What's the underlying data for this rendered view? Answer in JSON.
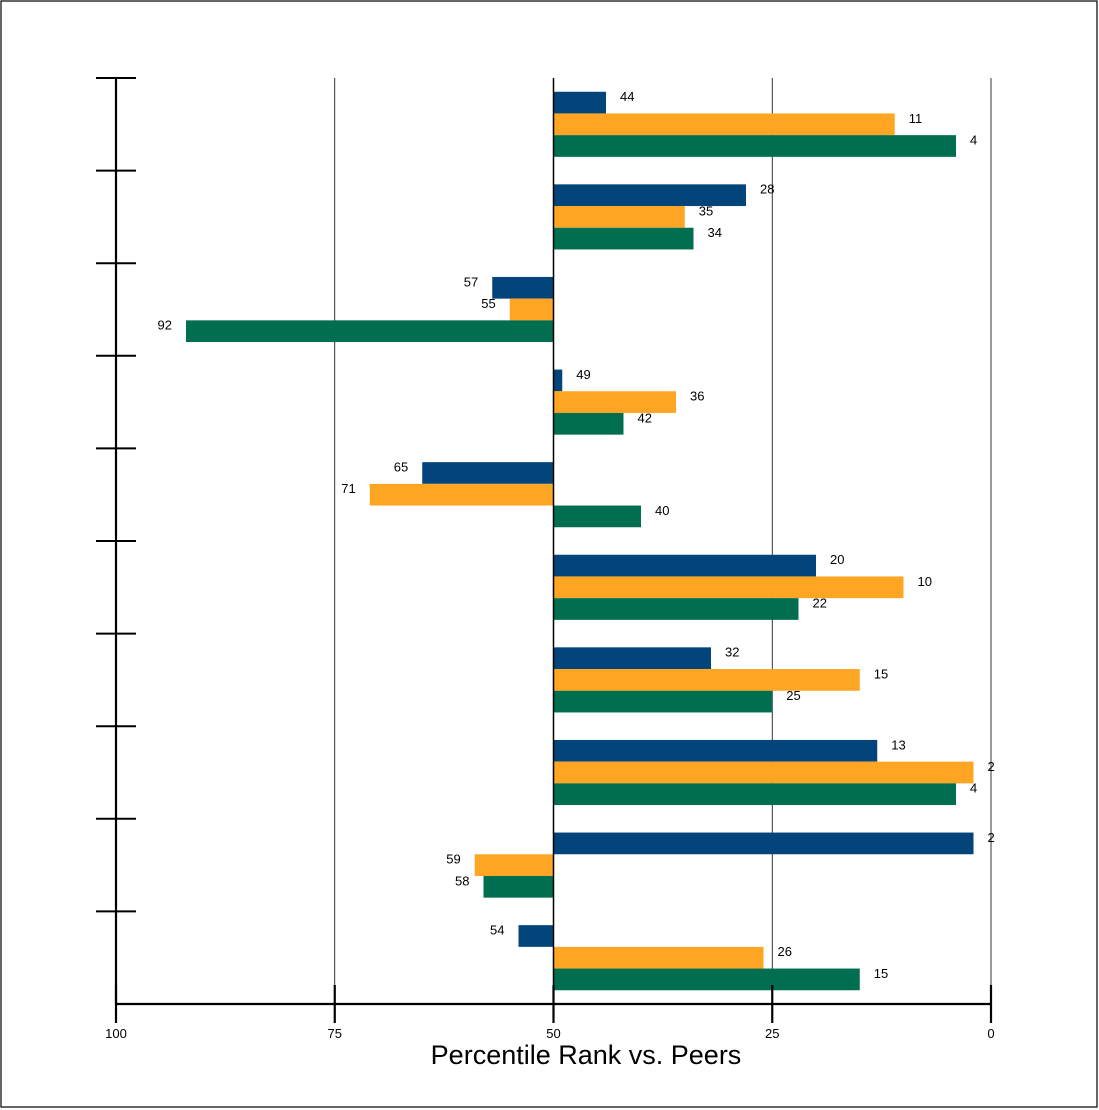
{
  "chart_data": {
    "type": "bar",
    "orientation": "horizontal",
    "xlabel": "Percentile Rank vs. Peers",
    "xlim": [
      100,
      0
    ],
    "x_reversed": true,
    "reference_value": 50,
    "x_ticks": [
      100,
      75,
      50,
      25,
      0
    ],
    "x_tick_labels": [
      "100",
      "75",
      "50",
      "25",
      "0"
    ],
    "gridlines": [
      75,
      25,
      0
    ],
    "group_count": 10,
    "legend": "none",
    "series": [
      {
        "color": "#03457b",
        "values": [
          44,
          28,
          57,
          49,
          65,
          20,
          32,
          13,
          2,
          54
        ]
      },
      {
        "color": "#fea523",
        "values": [
          11,
          35,
          55,
          36,
          71,
          10,
          15,
          2,
          59,
          26
        ]
      },
      {
        "color": "#016e50",
        "values": [
          4,
          34,
          92,
          42,
          40,
          22,
          25,
          4,
          58,
          15
        ]
      }
    ],
    "data_labels": [
      [
        "44",
        "28",
        "57",
        "49",
        "65",
        "20",
        "32",
        "13",
        "2",
        "54"
      ],
      [
        "11",
        "35",
        "55",
        "36",
        "71",
        "10",
        "15",
        "2",
        "59",
        "26"
      ],
      [
        "4",
        "34",
        "92",
        "42",
        "40",
        "22",
        "25",
        "4",
        "58",
        "15"
      ]
    ]
  }
}
